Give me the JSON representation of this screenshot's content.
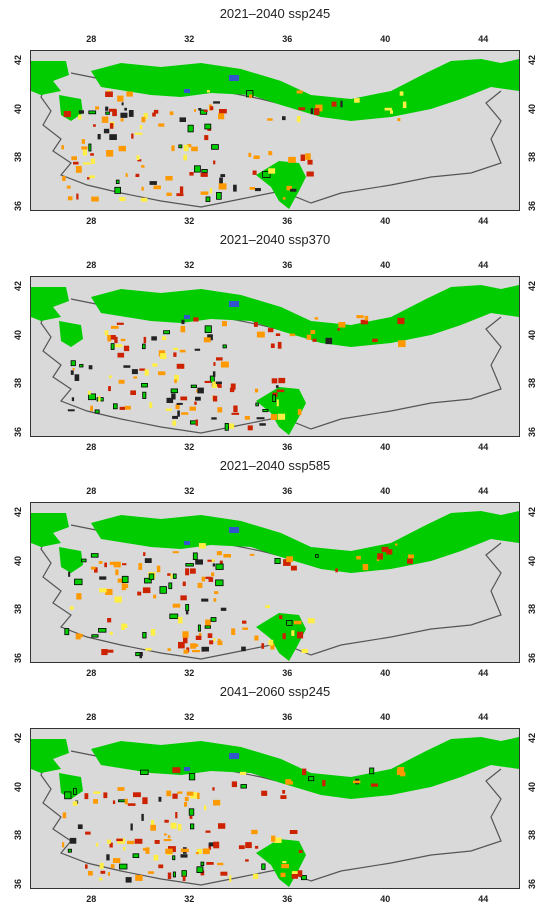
{
  "colors": {
    "background": "#d9d9d9",
    "forest": "#00cc00",
    "outline": "#555555",
    "loss_red": "#cc2200",
    "orange": "#ff9900",
    "yellow": "#ffee44",
    "blue": "#3355cc",
    "dark": "#222222"
  },
  "axes": {
    "x_ticks": [
      "28",
      "32",
      "36",
      "40",
      "44"
    ],
    "y_ticks": [
      "42",
      "40",
      "38",
      "36"
    ],
    "x_range": [
      25.5,
      45.5
    ],
    "y_range": [
      35.8,
      42.4
    ]
  },
  "panels": [
    {
      "title": "2021–2040 ssp245"
    },
    {
      "title": "2021–2040 ssp370"
    },
    {
      "title": "2021–2040 ssp585"
    },
    {
      "title": "2041–2060 ssp245"
    }
  ]
}
